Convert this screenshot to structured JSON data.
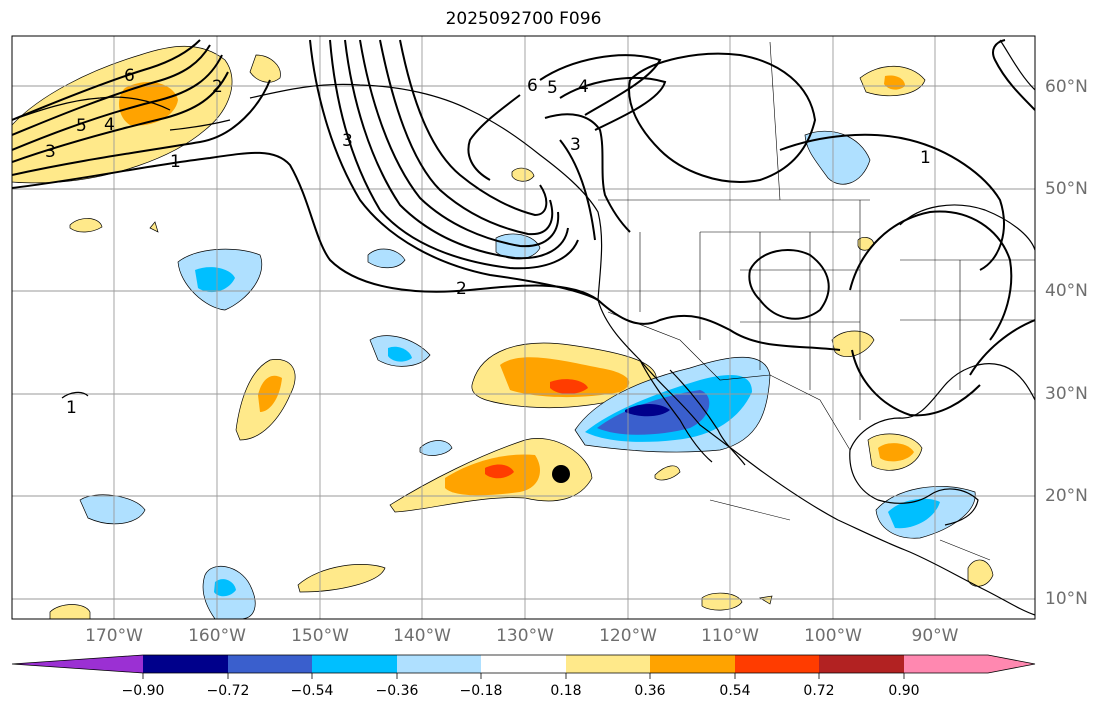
{
  "title": "2025092700 F096",
  "map": {
    "longitude_labels": [
      "170°W",
      "160°W",
      "150°W",
      "140°W",
      "130°W",
      "120°W",
      "110°W",
      "100°W",
      "90°W"
    ],
    "latitude_labels": [
      "60°N",
      "50°N",
      "40°N",
      "30°N",
      "20°N",
      "10°N"
    ],
    "contour_labels": [
      "1",
      "2",
      "3",
      "4",
      "5",
      "6"
    ],
    "marker": {
      "lon": -126.5,
      "lat": 22.2,
      "label": ""
    }
  },
  "colorbar": {
    "ticks": [
      "−0.90",
      "−0.72",
      "−0.54",
      "−0.36",
      "−0.18",
      "0.18",
      "0.36",
      "0.54",
      "0.72",
      "0.90"
    ],
    "colors": [
      "#9b30d3",
      "#00008b",
      "#3a5fcd",
      "#00bfff",
      "#afe0ff",
      "#ffffff",
      "#ffe98a",
      "#ffa300",
      "#ff3c00",
      "#b22222",
      "#ff88b0"
    ]
  }
}
